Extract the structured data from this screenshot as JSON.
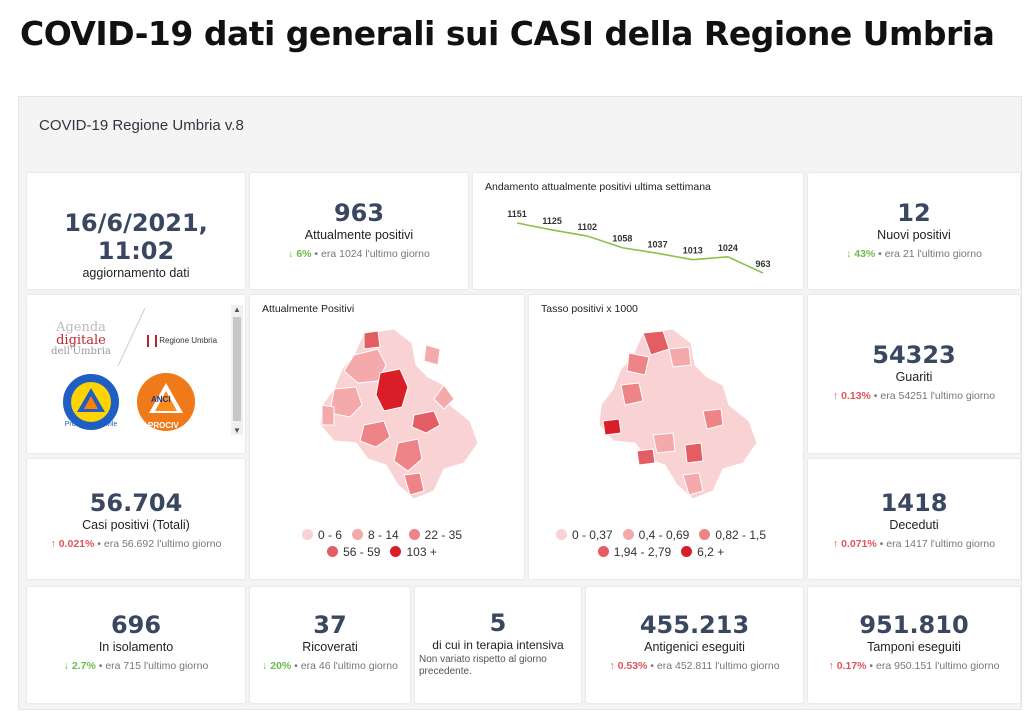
{
  "page_title": "COVID-19 dati generali sui CASI della Regione Umbria",
  "dashboard_title": "COVID-19 Regione Umbria v.8",
  "update": {
    "value": "16/6/2021, 11:02",
    "label": "aggiornamento dati"
  },
  "attualmente_positivi": {
    "value": "963",
    "label": "Attualmente positivi",
    "pct": "6%",
    "rest": "era 1024 l'ultimo giorno",
    "dir": "down"
  },
  "trend_chart": {
    "title": "Andamento attualmente positivi ultima settimana",
    "chart_data": {
      "type": "line",
      "values": [
        1151,
        1125,
        1102,
        1058,
        1037,
        1013,
        1024,
        963
      ],
      "labels": [
        "1151",
        "1125",
        "1102",
        "1058",
        "1037",
        "1013",
        "1024",
        "963"
      ],
      "color": "#8bc34a"
    }
  },
  "nuovi_positivi": {
    "value": "12",
    "label": "Nuovi positivi",
    "pct": "43%",
    "rest": "era 21 l'ultimo giorno",
    "dir": "down"
  },
  "logos": {
    "agenda_line1": "Agenda",
    "agenda_line2": "digitale",
    "agenda_line3": "dell'Umbria",
    "regione": "Regione Umbria",
    "anci_top": "ANCI",
    "anci_bottom": "PROCIV",
    "protezione": "Protezione Civile"
  },
  "map1": {
    "title": "Attualmente Positivi",
    "legend": [
      {
        "label": "0 - 6",
        "color": "#f9d3d3"
      },
      {
        "label": "8 - 14",
        "color": "#f4a9aa"
      },
      {
        "label": "22 - 35",
        "color": "#ee8488"
      },
      {
        "label": "56 - 59",
        "color": "#e45d63"
      },
      {
        "label": "103 +",
        "color": "#d91e27"
      }
    ]
  },
  "map2": {
    "title": "Tasso positivi x 1000",
    "legend": [
      {
        "label": "0 - 0,37",
        "color": "#f9d3d3"
      },
      {
        "label": "0,4 - 0,69",
        "color": "#f4a9aa"
      },
      {
        "label": "0,82 - 1,5",
        "color": "#ee8488"
      },
      {
        "label": "1,94 - 2,79",
        "color": "#e45d63"
      },
      {
        "label": "6,2 +",
        "color": "#d91e27"
      }
    ]
  },
  "guariti": {
    "value": "54323",
    "label": "Guariti",
    "pct": "0.13%",
    "rest": "era 54251 l'ultimo giorno",
    "dir": "up"
  },
  "casi_totali": {
    "value": "56.704",
    "label": "Casi positivi (Totali)",
    "pct": "0.021%",
    "rest": "era 56.692 l'ultimo giorno",
    "dir": "up"
  },
  "deceduti": {
    "value": "1418",
    "label": "Deceduti",
    "pct": "0.071%",
    "rest": "era 1417 l'ultimo giorno",
    "dir": "up"
  },
  "isolamento": {
    "value": "696",
    "label": "In isolamento",
    "pct": "2.7%",
    "rest": "era 715 l'ultimo giorno",
    "dir": "down"
  },
  "ricoverati": {
    "value": "37",
    "label": "Ricoverati",
    "pct": "20%",
    "rest": "era 46 l'ultimo giorno",
    "dir": "down"
  },
  "terapia": {
    "value": "5",
    "label": "di cui in terapia intensiva",
    "note": "Non variato rispetto al giorno precedente."
  },
  "antigenici": {
    "value": "455.213",
    "label": "Antigenici eseguiti",
    "pct": "0.53%",
    "rest": "era 452.811 l'ultimo giorno",
    "dir": "up"
  },
  "tamponi": {
    "value": "951.810",
    "label": "Tamponi eseguiti",
    "pct": "0.17%",
    "rest": "era 950.151 l'ultimo giorno",
    "dir": "up"
  },
  "arrows": {
    "up": "↑",
    "down": "↓"
  }
}
